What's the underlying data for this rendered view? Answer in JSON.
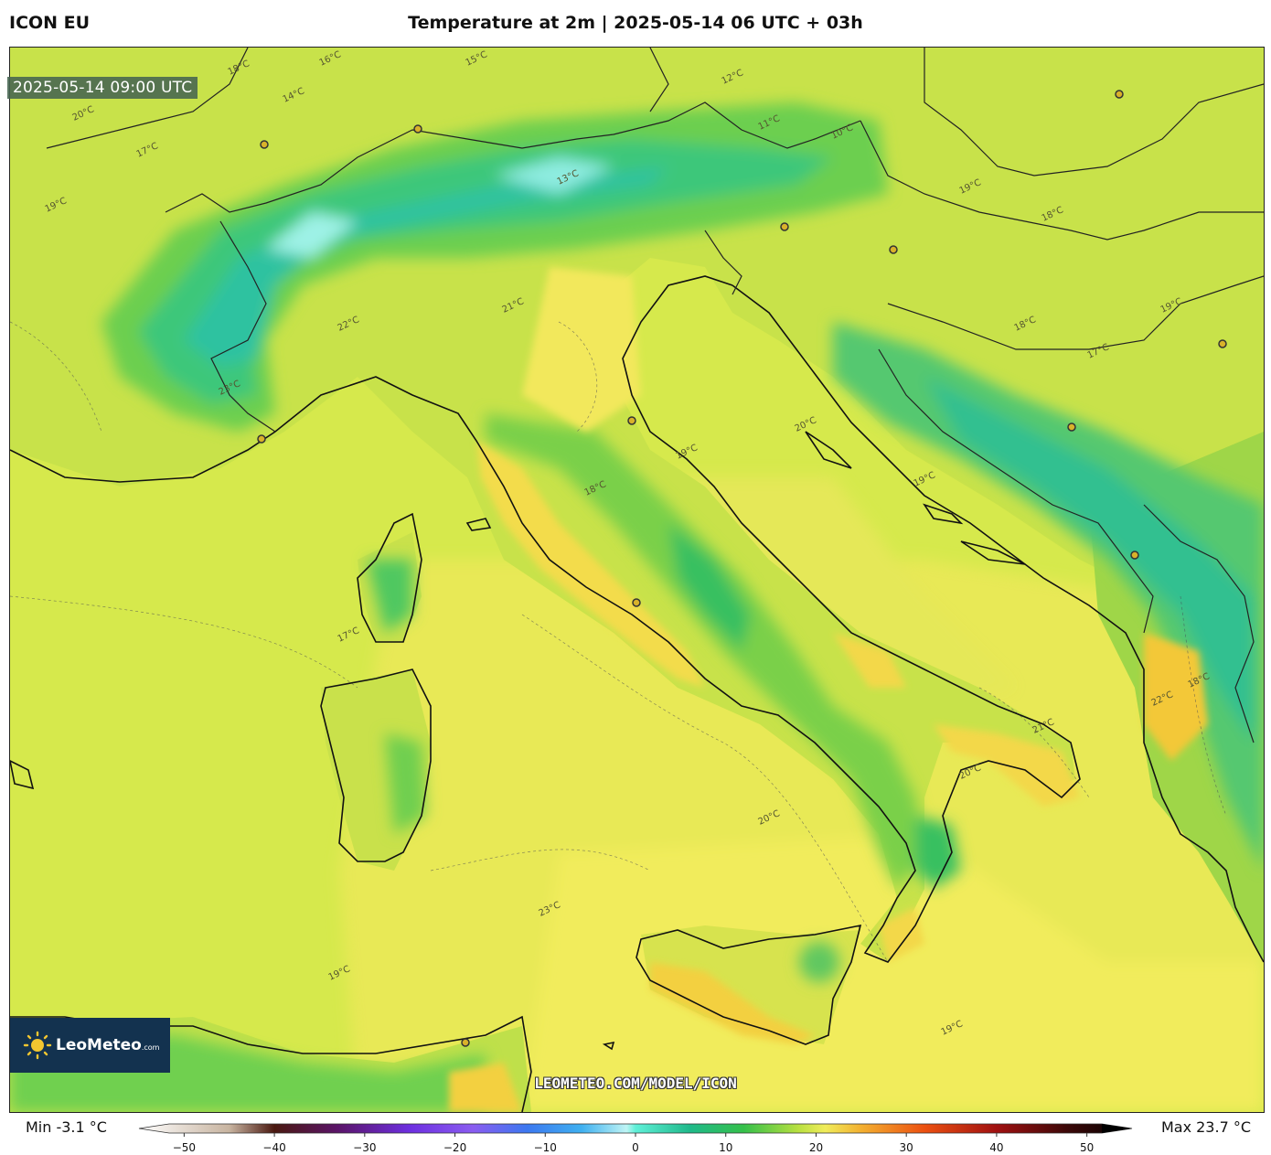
{
  "header": {
    "model": "ICON EU",
    "title": "Temperature at 2m | 2025-05-14 06 UTC + 03h"
  },
  "map": {
    "valid_time": "2025-05-14 09:00 UTC",
    "watermark": "LEOMETEO.COM/MODEL/ICON",
    "logo": {
      "name": "LeoMeteo",
      "suffix": ".com"
    },
    "isotherm_labels": [
      "18°C",
      "19°C",
      "17°C",
      "20°C",
      "16°C",
      "15°C",
      "14°C",
      "13°C",
      "12°C",
      "11°C",
      "10°C",
      "21°C",
      "22°C",
      "23°C",
      "18°C",
      "19°C",
      "20°C",
      "19°C",
      "18°C",
      "17°C",
      "19°C",
      "18°C",
      "19°C",
      "20°C",
      "21°C",
      "22°C",
      "23°C",
      "19°C",
      "18°C",
      "17°C",
      "20°C",
      "19°C"
    ],
    "colors": {
      "sea_mid": "#d9ea4e",
      "warm": "#f2ea58",
      "hot": "#f3cc3e",
      "alps": "#39c780",
      "alps_peak": "#86e7d8",
      "coast": "#111111"
    }
  },
  "legend": {
    "min_label": "Min -3.1 °C",
    "max_label": "Max 23.7 °C",
    "ticks": [
      "−50",
      "−40",
      "−30",
      "−20",
      "−10",
      "0",
      "10",
      "20",
      "30",
      "40",
      "50"
    ],
    "tick_values": [
      -50,
      -40,
      -30,
      -20,
      -10,
      0,
      10,
      20,
      30,
      40,
      50
    ],
    "range": [
      -55,
      55
    ],
    "stops": [
      {
        "v": -55,
        "c": "#ffffff"
      },
      {
        "v": -45,
        "c": "#c8b4a0"
      },
      {
        "v": -40,
        "c": "#4a1810"
      },
      {
        "v": -33,
        "c": "#5a1468"
      },
      {
        "v": -25,
        "c": "#6d2fe0"
      },
      {
        "v": -18,
        "c": "#8a5cf0"
      },
      {
        "v": -12,
        "c": "#3c78f0"
      },
      {
        "v": -6,
        "c": "#3fb0f0"
      },
      {
        "v": -1,
        "c": "#bff4f4"
      },
      {
        "v": 0,
        "c": "#5ff0d8"
      },
      {
        "v": 6,
        "c": "#1fb98a"
      },
      {
        "v": 12,
        "c": "#35c04a"
      },
      {
        "v": 18,
        "c": "#b8e040"
      },
      {
        "v": 21,
        "c": "#f0ec5a"
      },
      {
        "v": 25,
        "c": "#f3b030"
      },
      {
        "v": 32,
        "c": "#ec5010"
      },
      {
        "v": 40,
        "c": "#a01010"
      },
      {
        "v": 48,
        "c": "#3a0808"
      },
      {
        "v": 55,
        "c": "#000000"
      }
    ]
  }
}
